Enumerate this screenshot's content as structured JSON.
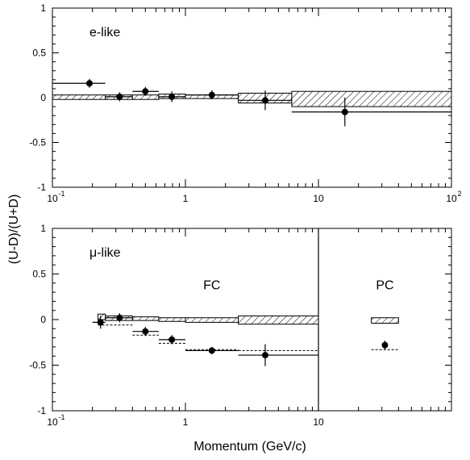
{
  "figure": {
    "ylabel": "(U-D)/(U+D)",
    "xlabel": "Momentum (GeV/c)"
  },
  "chart_data": [
    {
      "type": "scatter",
      "panel": "top",
      "annotation": "e-like",
      "xscale": "log",
      "xlim": [
        0.1,
        100
      ],
      "ylim": [
        -1,
        1
      ],
      "x_ticks": [
        {
          "value": 0.1,
          "base": "10",
          "exp": "-1"
        },
        {
          "value": 1,
          "base": "1",
          "exp": ""
        },
        {
          "value": 10,
          "base": "10",
          "exp": ""
        },
        {
          "value": 100,
          "base": "10",
          "exp": "2"
        }
      ],
      "y_ticks": [
        {
          "value": 1,
          "label": "1"
        },
        {
          "value": 0.5,
          "label": "0.5"
        },
        {
          "value": 0,
          "label": "0"
        },
        {
          "value": -0.5,
          "label": "-0.5"
        },
        {
          "value": -1,
          "label": "-1"
        }
      ],
      "data_points": [
        {
          "x": 0.19,
          "y": 0.16,
          "xlo": 0.1,
          "xhi": 0.25,
          "err": 0.05
        },
        {
          "x": 0.32,
          "y": 0.01,
          "xlo": 0.25,
          "xhi": 0.4,
          "err": 0.05
        },
        {
          "x": 0.5,
          "y": 0.07,
          "xlo": 0.4,
          "xhi": 0.63,
          "err": 0.05
        },
        {
          "x": 0.79,
          "y": 0.01,
          "xlo": 0.63,
          "xhi": 1.0,
          "err": 0.06
        },
        {
          "x": 1.58,
          "y": 0.03,
          "xlo": 1.0,
          "xhi": 2.5,
          "err": 0.05
        },
        {
          "x": 3.98,
          "y": -0.03,
          "xlo": 2.5,
          "xhi": 6.3,
          "err": 0.11
        },
        {
          "x": 15.8,
          "y": -0.16,
          "xlo": 6.3,
          "xhi": 100,
          "err": 0.16
        }
      ],
      "mc_boxes": [
        {
          "xlo": 0.1,
          "xhi": 0.25,
          "ylo": -0.02,
          "yhi": 0.03
        },
        {
          "xlo": 0.25,
          "xhi": 0.4,
          "ylo": -0.02,
          "yhi": 0.03
        },
        {
          "xlo": 0.4,
          "xhi": 0.63,
          "ylo": -0.02,
          "yhi": 0.03
        },
        {
          "xlo": 0.63,
          "xhi": 1.0,
          "ylo": -0.01,
          "yhi": 0.04
        },
        {
          "xlo": 1.0,
          "xhi": 2.5,
          "ylo": -0.01,
          "yhi": 0.03
        },
        {
          "xlo": 2.5,
          "xhi": 6.3,
          "ylo": -0.06,
          "yhi": 0.05
        },
        {
          "xlo": 6.3,
          "xhi": 100,
          "ylo": -0.1,
          "yhi": 0.07
        }
      ],
      "no_osc_lines": []
    },
    {
      "type": "scatter",
      "panel": "bottom",
      "annotation": "μ-like",
      "xscale": "log",
      "xlim": [
        0.1,
        100
      ],
      "ylim": [
        -1,
        1
      ],
      "x_ticks": [
        {
          "value": 0.1,
          "base": "10",
          "exp": "-1"
        },
        {
          "value": 1,
          "base": "1",
          "exp": ""
        },
        {
          "value": 10,
          "base": "10",
          "exp": ""
        }
      ],
      "y_ticks": [
        {
          "value": 1,
          "label": "1"
        },
        {
          "value": 0.5,
          "label": "0.5"
        },
        {
          "value": 0,
          "label": "0"
        },
        {
          "value": -0.5,
          "label": "-0.5"
        },
        {
          "value": -1,
          "label": "-1"
        }
      ],
      "divider_x": 10,
      "region_labels": [
        {
          "text": "FC",
          "x": 1.58,
          "y": 0.33
        },
        {
          "text": "PC",
          "x": 31.6,
          "y": 0.33
        }
      ],
      "data_points": [
        {
          "x": 0.23,
          "y": -0.03,
          "xlo": 0.2,
          "xhi": 0.25,
          "err": 0.07
        },
        {
          "x": 0.32,
          "y": 0.02,
          "xlo": 0.25,
          "xhi": 0.4,
          "err": 0.05
        },
        {
          "x": 0.5,
          "y": -0.13,
          "xlo": 0.4,
          "xhi": 0.63,
          "err": 0.05
        },
        {
          "x": 0.79,
          "y": -0.22,
          "xlo": 0.63,
          "xhi": 1.0,
          "err": 0.05
        },
        {
          "x": 1.58,
          "y": -0.34,
          "xlo": 1.0,
          "xhi": 2.5,
          "err": 0.04
        },
        {
          "x": 3.98,
          "y": -0.39,
          "xlo": 2.5,
          "xhi": 10,
          "err": 0.12
        },
        {
          "x": 31.6,
          "y": -0.28,
          "xlo": null,
          "xhi": null,
          "err": 0.05
        }
      ],
      "mc_boxes": [
        {
          "xlo": 0.22,
          "xhi": 0.25,
          "ylo": 0.0,
          "yhi": 0.06
        },
        {
          "xlo": 0.25,
          "xhi": 0.4,
          "ylo": -0.01,
          "yhi": 0.04
        },
        {
          "xlo": 0.4,
          "xhi": 0.63,
          "ylo": -0.01,
          "yhi": 0.03
        },
        {
          "xlo": 0.63,
          "xhi": 1.0,
          "ylo": -0.02,
          "yhi": 0.02
        },
        {
          "xlo": 1.0,
          "xhi": 2.5,
          "ylo": -0.03,
          "yhi": 0.02
        },
        {
          "xlo": 2.5,
          "xhi": 10,
          "ylo": -0.05,
          "yhi": 0.04
        },
        {
          "xlo": 25,
          "xhi": 40,
          "ylo": -0.04,
          "yhi": 0.02
        }
      ],
      "no_osc_lines": [
        {
          "xlo": 0.22,
          "xhi": 0.4,
          "y": -0.06
        },
        {
          "xlo": 0.4,
          "xhi": 0.63,
          "y": -0.17
        },
        {
          "xlo": 0.63,
          "xhi": 1.0,
          "y": -0.26
        },
        {
          "xlo": 1.0,
          "xhi": 2.5,
          "y": -0.33
        },
        {
          "xlo": 2.5,
          "xhi": 10,
          "y": -0.34
        },
        {
          "xlo": 25,
          "xhi": 40,
          "y": -0.33
        }
      ]
    }
  ]
}
